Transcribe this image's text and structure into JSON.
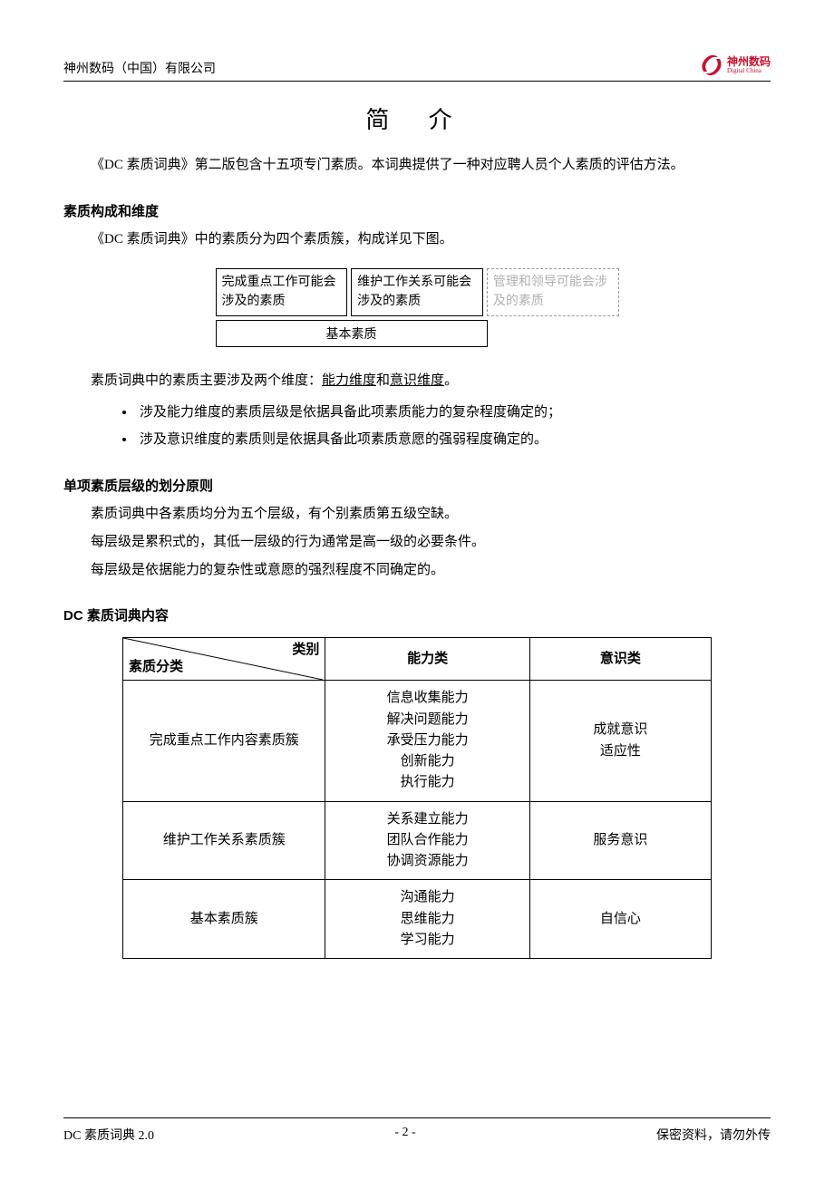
{
  "header": {
    "company": "神州数码（中国）有限公司",
    "logo_text": "神州数码",
    "logo_sub": "Digital China"
  },
  "title": "简 介",
  "intro": "《DC 素质词典》第二版包含十五项专门素质。本词典提供了一种对应聘人员个人素质的评估方法。",
  "section1": {
    "heading": "素质构成和维度",
    "p1": "《DC 素质词典》中的素质分为四个素质簇，构成详见下图。",
    "cluster": {
      "box1": "完成重点工作可能会涉及的素质",
      "box2": "维护工作关系可能会涉及的素质",
      "box3": "管理和领导可能会涉及的素质",
      "bottom": "基本素质"
    },
    "p2_pre": "素质词典中的素质主要涉及两个维度：",
    "p2_u1": "能力维度",
    "p2_mid": "和",
    "p2_u2": "意识维度",
    "p2_end": "。",
    "bullet1": "涉及能力维度的素质层级是依据具备此项素质能力的复杂程度确定的；",
    "bullet2": "涉及意识维度的素质则是依据具备此项素质意愿的强弱程度确定的。"
  },
  "section2": {
    "heading": "单项素质层级的划分原则",
    "p1": "素质词典中各素质均分为五个层级，有个别素质第五级空缺。",
    "p2": "每层级是累积式的，其低一层级的行为通常是高一级的必要条件。",
    "p3": "每层级是依据能力的复杂性或意愿的强烈程度不同确定的。"
  },
  "section3": {
    "heading": "DC 素质词典内容",
    "table": {
      "diag_top": "类别",
      "diag_bottom": "素质分类",
      "col2_h": "能力类",
      "col3_h": "意识类",
      "rows": [
        {
          "c1": "完成重点工作内容素质簇",
          "c2": "信息收集能力\n解决问题能力\n承受压力能力\n创新能力\n执行能力",
          "c3": "成就意识\n适应性"
        },
        {
          "c1": "维护工作关系素质簇",
          "c2": "关系建立能力\n团队合作能力\n协调资源能力",
          "c3": "服务意识"
        },
        {
          "c1": "基本素质簇",
          "c2": "沟通能力\n思维能力\n学习能力",
          "c3": "自信心"
        }
      ]
    }
  },
  "footer": {
    "left": "DC 素质词典 2.0",
    "center": "- 2 -",
    "right": "保密资料，请勿外传"
  },
  "colors": {
    "logo_red": "#c8102e",
    "text": "#000000",
    "faded": "#b0b0b0",
    "bg": "#ffffff"
  }
}
